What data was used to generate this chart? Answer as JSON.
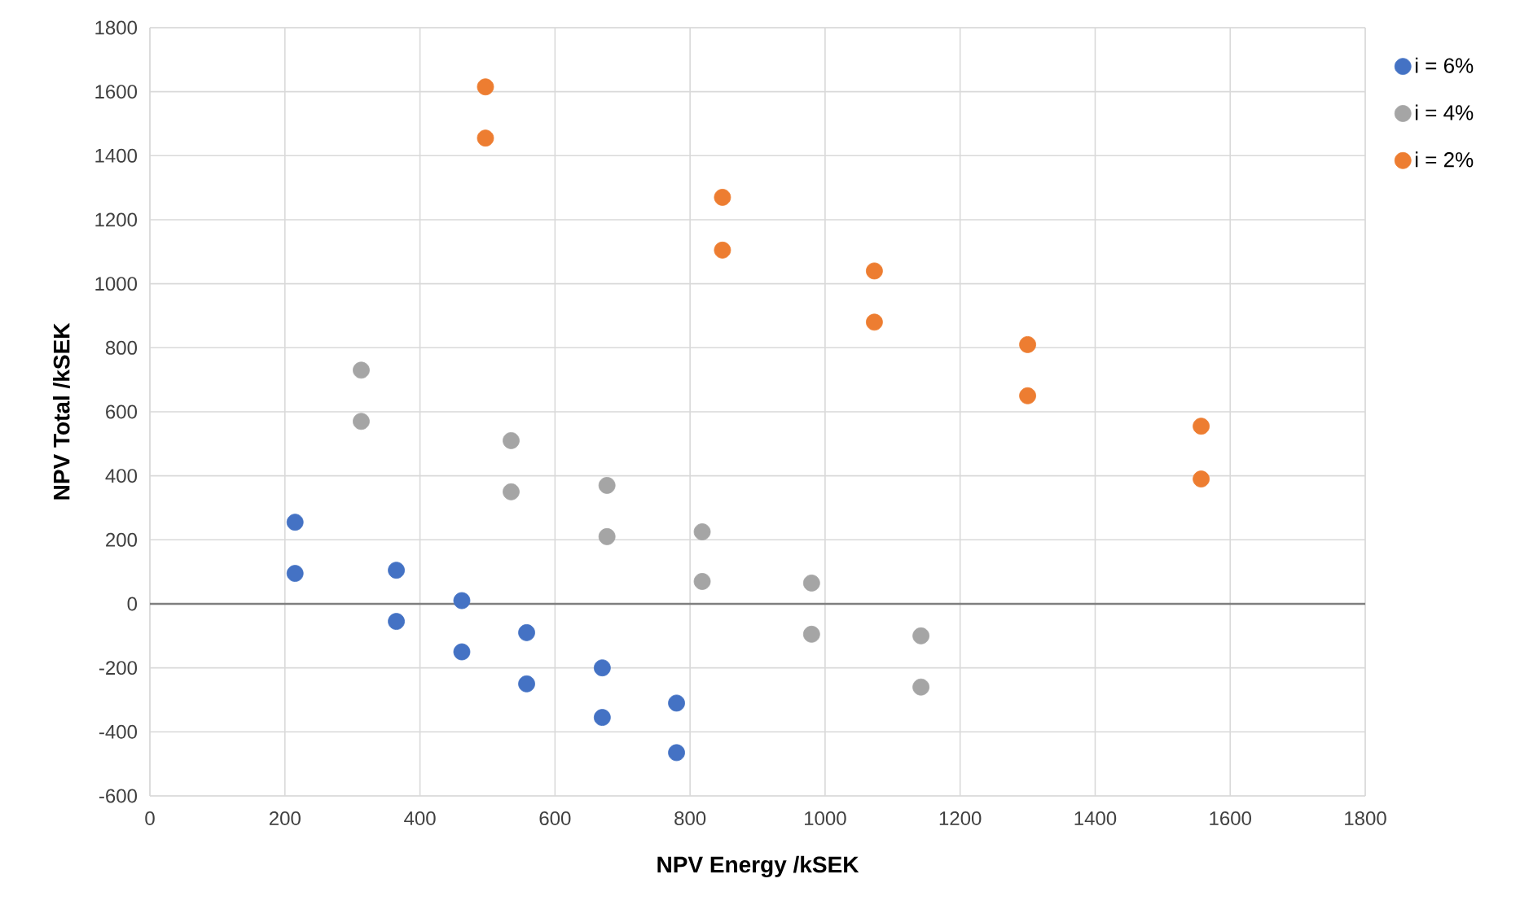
{
  "chart_data": {
    "type": "scatter",
    "xlabel": "NPV Energy /kSEK",
    "ylabel": "NPV Total /kSEK",
    "xlim": [
      0,
      1800
    ],
    "xticks": [
      0,
      200,
      400,
      600,
      800,
      1000,
      1200,
      1400,
      1600,
      1800
    ],
    "ylim": [
      -600,
      1800
    ],
    "yticks": [
      -600,
      -400,
      -200,
      0,
      200,
      400,
      600,
      800,
      1000,
      1200,
      1400,
      1600,
      1800
    ],
    "grid": true,
    "legend": "right",
    "marker": "circle",
    "ref_lines": [
      {
        "axis": "y",
        "value": 0,
        "label": null,
        "color": "#7f7f7f"
      }
    ],
    "series": [
      {
        "name": "i = 6%",
        "color": "#4472c4",
        "x": [
          215,
          215,
          365,
          365,
          462,
          462,
          558,
          558,
          670,
          670,
          780,
          780
        ],
        "values": [
          255,
          95,
          105,
          -55,
          10,
          -150,
          -90,
          -250,
          -200,
          -355,
          -310,
          -465
        ]
      },
      {
        "name": "i = 4%",
        "color": "#a5a5a5",
        "x": [
          313,
          313,
          535,
          535,
          677,
          677,
          818,
          818,
          980,
          980,
          1142,
          1142
        ],
        "values": [
          730,
          570,
          510,
          350,
          370,
          210,
          225,
          70,
          65,
          -95,
          -100,
          -260
        ]
      },
      {
        "name": "i = 2%",
        "color": "#ed7d31",
        "x": [
          497,
          497,
          848,
          848,
          1073,
          1073,
          1300,
          1300,
          1557,
          1557
        ],
        "values": [
          1615,
          1455,
          1270,
          1105,
          1040,
          880,
          810,
          650,
          555,
          390
        ]
      }
    ]
  }
}
